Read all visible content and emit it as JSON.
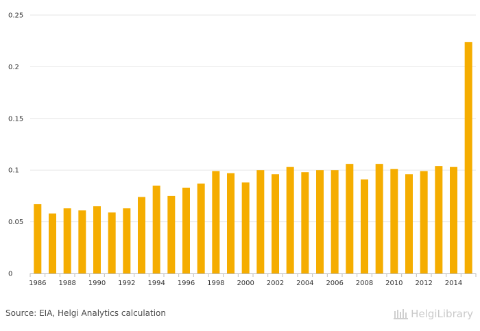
{
  "chart_data": {
    "type": "bar",
    "title": "",
    "xlabel": "",
    "ylabel": "",
    "categories": [
      "1986",
      "1987",
      "1988",
      "1989",
      "1990",
      "1991",
      "1992",
      "1993",
      "1994",
      "1995",
      "1996",
      "1997",
      "1998",
      "1999",
      "2000",
      "2001",
      "2002",
      "2003",
      "2004",
      "2005",
      "2006",
      "2007",
      "2008",
      "2009",
      "2010",
      "2011",
      "2012",
      "2013",
      "2014",
      "2015"
    ],
    "x_tick_labels": [
      "1986",
      "1988",
      "1990",
      "1992",
      "1994",
      "1996",
      "1998",
      "2000",
      "2002",
      "2004",
      "2006",
      "2008",
      "2010",
      "2012",
      "2014"
    ],
    "values": [
      0.067,
      0.058,
      0.063,
      0.061,
      0.065,
      0.059,
      0.063,
      0.074,
      0.085,
      0.075,
      0.083,
      0.087,
      0.099,
      0.097,
      0.088,
      0.1,
      0.096,
      0.103,
      0.098,
      0.1,
      0.1,
      0.106,
      0.091,
      0.106,
      0.101,
      0.096,
      0.099,
      0.104,
      0.103,
      0.224
    ],
    "y_ticks": [
      "0",
      "0.05",
      "0.1",
      "0.15",
      "0.2",
      "0.25"
    ],
    "ylim": [
      0,
      0.25
    ],
    "grid": true,
    "bar_color": "#f5ad00"
  },
  "footer": {
    "source": "Source: EIA, Helgi Analytics calculation",
    "brand": "HelgiLibrary"
  }
}
